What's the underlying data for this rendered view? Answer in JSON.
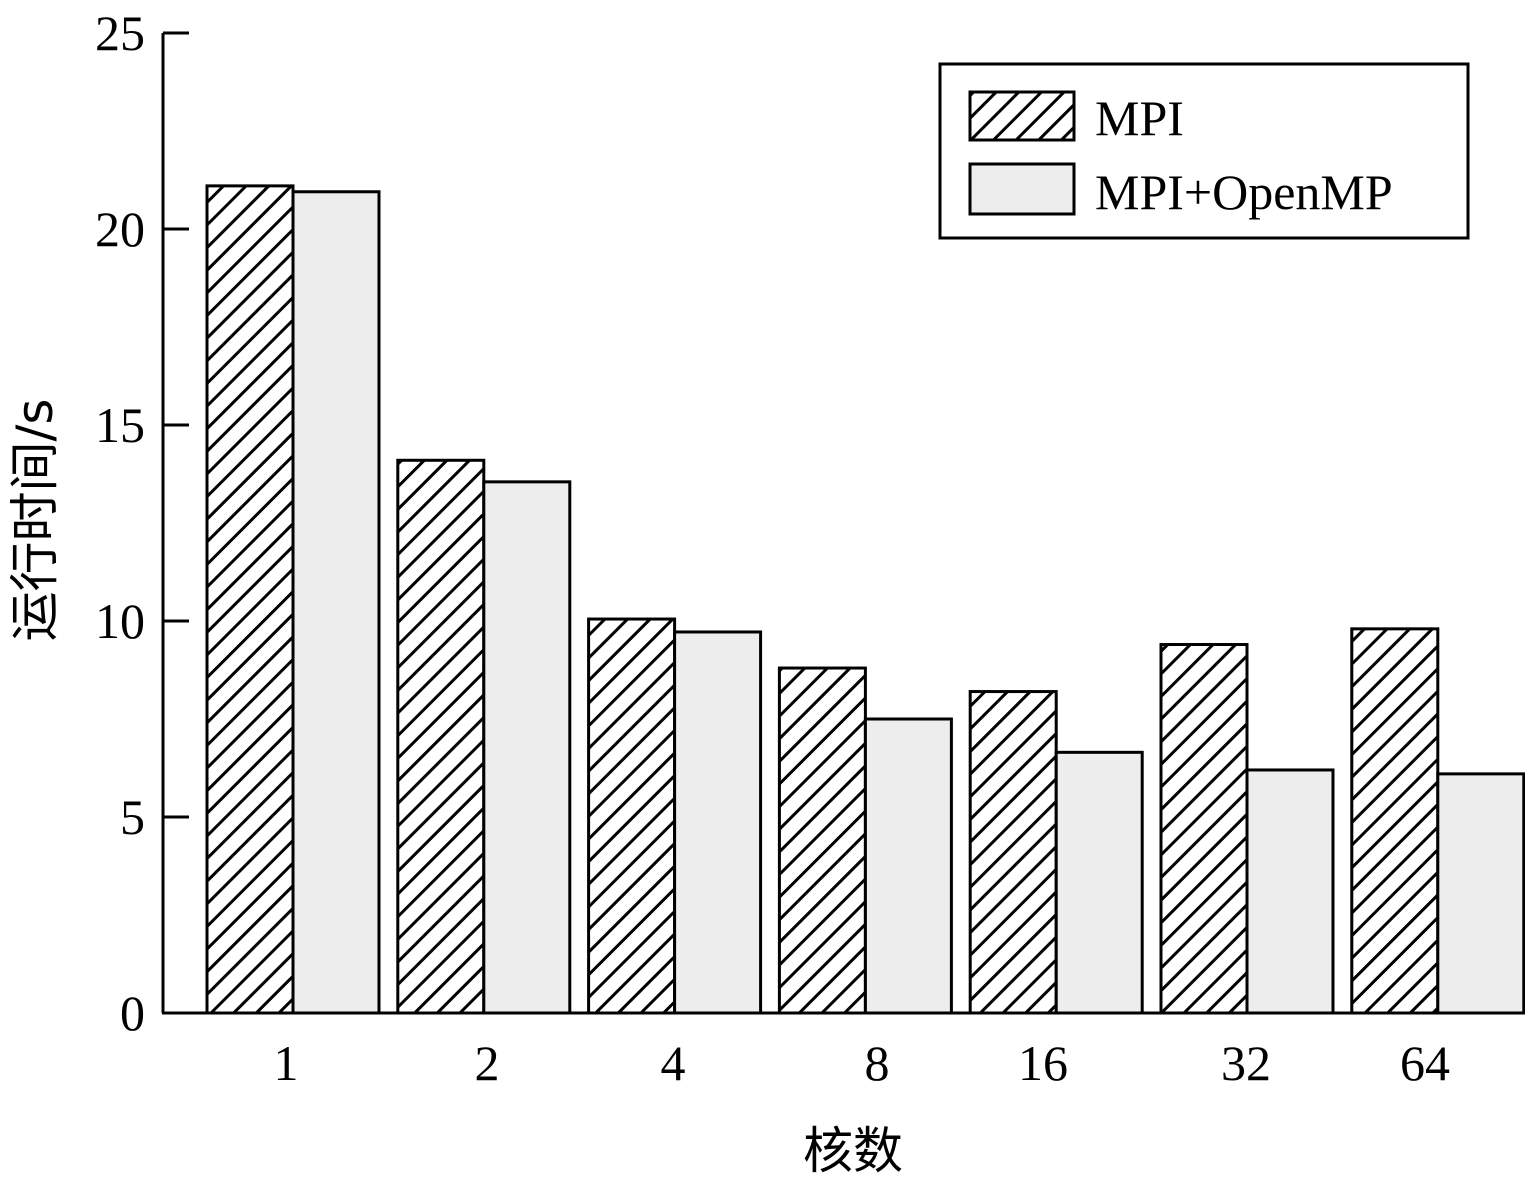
{
  "chart_data": {
    "type": "bar",
    "xlabel": "核数",
    "ylabel": "运行时间/s",
    "ylim": [
      0,
      25
    ],
    "yticks": [
      "0",
      "5",
      "10",
      "15",
      "20",
      "25"
    ],
    "categories": [
      "1",
      "2",
      "4",
      "8",
      "16",
      "32",
      "64"
    ],
    "series": [
      {
        "name": "MPI",
        "pattern": "diagonal-hatch",
        "values": [
          21.1,
          14.1,
          10.05,
          8.8,
          8.2,
          9.4,
          9.8
        ]
      },
      {
        "name": "MPI+OpenMP",
        "pattern": "solid-light-gray",
        "values": [
          20.95,
          13.55,
          9.72,
          7.5,
          6.65,
          6.2,
          6.1
        ]
      }
    ],
    "legend_position": "top-right",
    "grid": false,
    "colors": {
      "mpi_fill": "#ffffff",
      "hatch": "#000000",
      "openmp_fill": "#ededed",
      "stroke": "#000000"
    }
  }
}
